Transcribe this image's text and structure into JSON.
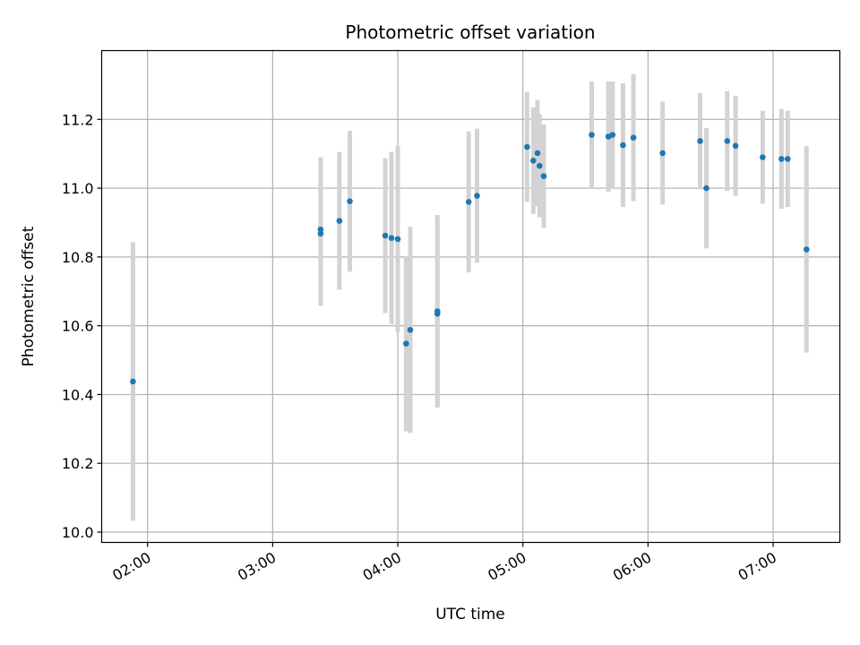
{
  "chart_data": {
    "type": "scatter",
    "title": "Photometric offset variation",
    "xlabel": "UTC time",
    "ylabel": "Photometric offset",
    "x_tick_labels": [
      "02:00",
      "03:00",
      "04:00",
      "05:00",
      "06:00",
      "07:00"
    ],
    "y_tick_labels": [
      "10.0",
      "10.2",
      "10.4",
      "10.6",
      "10.8",
      "11.0",
      "11.2"
    ],
    "x_ticks": [
      "02:00",
      "03:00",
      "04:00",
      "05:00",
      "06:00",
      "07:00"
    ],
    "y_ticks": [
      10.0,
      10.2,
      10.4,
      10.6,
      10.8,
      11.0,
      11.2
    ],
    "xlim": [
      "01:38",
      "07:32"
    ],
    "ylim": [
      9.97,
      11.4
    ],
    "grid": true,
    "colors": {
      "point": "#1f77b4",
      "error_bar": "#d3d3d3",
      "grid": "#b0b0b0"
    },
    "points": [
      {
        "x": "01:53",
        "y": 10.438,
        "yerr": 0.405
      },
      {
        "x": "03:23",
        "y": 10.88,
        "yerr": 0.21
      },
      {
        "x": "03:23",
        "y": 10.868,
        "yerr": 0.21
      },
      {
        "x": "03:32",
        "y": 10.905,
        "yerr": 0.2
      },
      {
        "x": "03:37",
        "y": 10.962,
        "yerr": 0.205
      },
      {
        "x": "03:54",
        "y": 10.862,
        "yerr": 0.225
      },
      {
        "x": "03:57",
        "y": 10.855,
        "yerr": 0.25
      },
      {
        "x": "04:00",
        "y": 10.852,
        "yerr": 0.27
      },
      {
        "x": "04:04",
        "y": 10.548,
        "yerr": 0.255
      },
      {
        "x": "04:06",
        "y": 10.588,
        "yerr": 0.3
      },
      {
        "x": "04:19",
        "y": 10.642,
        "yerr": 0.28
      },
      {
        "x": "04:19",
        "y": 10.635,
        "yerr": 0.27
      },
      {
        "x": "04:34",
        "y": 10.96,
        "yerr": 0.205
      },
      {
        "x": "04:38",
        "y": 10.978,
        "yerr": 0.195
      },
      {
        "x": "05:02",
        "y": 11.12,
        "yerr": 0.16
      },
      {
        "x": "05:05",
        "y": 11.08,
        "yerr": 0.155
      },
      {
        "x": "05:07",
        "y": 11.102,
        "yerr": 0.155
      },
      {
        "x": "05:08",
        "y": 11.065,
        "yerr": 0.15
      },
      {
        "x": "05:10",
        "y": 11.035,
        "yerr": 0.15
      },
      {
        "x": "05:33",
        "y": 11.155,
        "yerr": 0.155
      },
      {
        "x": "05:41",
        "y": 11.15,
        "yerr": 0.16
      },
      {
        "x": "05:43",
        "y": 11.155,
        "yerr": 0.155
      },
      {
        "x": "05:48",
        "y": 11.125,
        "yerr": 0.18
      },
      {
        "x": "05:53",
        "y": 11.147,
        "yerr": 0.185
      },
      {
        "x": "06:07",
        "y": 11.102,
        "yerr": 0.15
      },
      {
        "x": "06:25",
        "y": 11.137,
        "yerr": 0.14
      },
      {
        "x": "06:28",
        "y": 11.0,
        "yerr": 0.175
      },
      {
        "x": "06:38",
        "y": 11.137,
        "yerr": 0.145
      },
      {
        "x": "06:42",
        "y": 11.123,
        "yerr": 0.145
      },
      {
        "x": "06:55",
        "y": 11.09,
        "yerr": 0.135
      },
      {
        "x": "07:04",
        "y": 11.085,
        "yerr": 0.145
      },
      {
        "x": "07:07",
        "y": 11.085,
        "yerr": 0.14
      },
      {
        "x": "07:16",
        "y": 10.822,
        "yerr": 0.3
      }
    ]
  }
}
